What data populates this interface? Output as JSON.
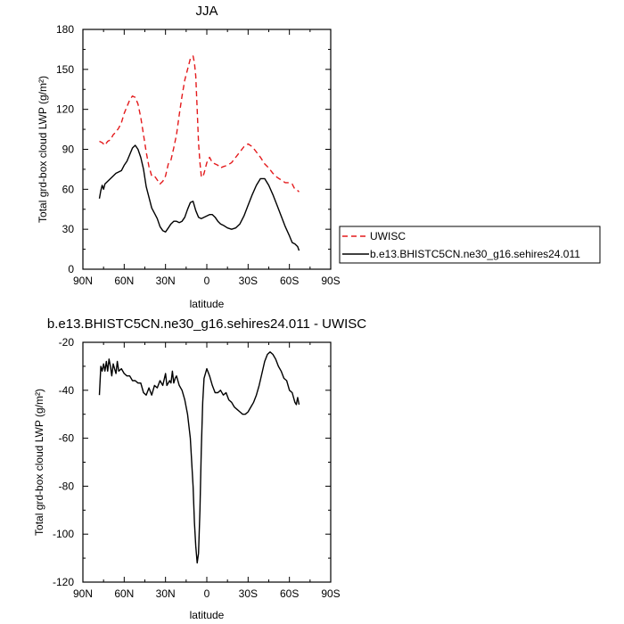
{
  "chart_data": [
    {
      "type": "line",
      "title": "JJA",
      "xlabel": "latitude",
      "ylabel": "Total grd-box cloud LWP (g/m²)",
      "xlim": [
        90,
        -90
      ],
      "ylim": [
        0,
        180
      ],
      "xticks": [
        {
          "value": 90,
          "label": "90N"
        },
        {
          "value": 60,
          "label": "60N"
        },
        {
          "value": 30,
          "label": "30N"
        },
        {
          "value": 0,
          "label": "0"
        },
        {
          "value": -30,
          "label": "30S"
        },
        {
          "value": -60,
          "label": "60S"
        },
        {
          "value": -90,
          "label": "90S"
        }
      ],
      "yticks": [
        0,
        30,
        60,
        90,
        120,
        150,
        180
      ],
      "legend_position": "right",
      "series": [
        {
          "name": "UWISC",
          "color": "#e41a1c",
          "dash": "dashed",
          "x": [
            78,
            76,
            74,
            72,
            70,
            68,
            66,
            64,
            62,
            60,
            58,
            56,
            54,
            52,
            50,
            48,
            46,
            44,
            42,
            40,
            38,
            36,
            34,
            32,
            30,
            28,
            26,
            24,
            22,
            20,
            18,
            16,
            14,
            12,
            10,
            9,
            8,
            7,
            6,
            5,
            4,
            3,
            2,
            0,
            -2,
            -4,
            -6,
            -8,
            -10,
            -12,
            -15,
            -18,
            -21,
            -24,
            -27,
            -30,
            -33,
            -36,
            -39,
            -42,
            -45,
            -48,
            -51,
            -54,
            -57,
            -60,
            -62,
            -64,
            -66,
            -67
          ],
          "y": [
            96,
            95,
            93,
            96,
            97,
            101,
            103,
            106,
            110,
            117,
            122,
            127,
            130,
            129,
            124,
            114,
            101,
            88,
            77,
            70,
            70,
            67,
            64,
            66,
            70,
            79,
            82,
            91,
            101,
            116,
            130,
            142,
            150,
            158,
            160,
            155,
            145,
            120,
            95,
            80,
            70,
            69,
            72,
            80,
            84,
            80,
            79,
            78,
            76,
            77,
            78,
            80,
            84,
            88,
            92,
            94,
            92,
            88,
            84,
            79,
            76,
            72,
            69,
            67,
            65,
            65,
            64,
            60,
            59,
            58
          ]
        },
        {
          "name": "b.e13.BHISTC5CN.ne30_g16.sehires24.011",
          "color": "#000000",
          "dash": "solid",
          "x": [
            78,
            77,
            76,
            75,
            74,
            72,
            70,
            68,
            66,
            64,
            62,
            60,
            58,
            56,
            54,
            52,
            50,
            48,
            46,
            44,
            42,
            40,
            38,
            36,
            34,
            32,
            30,
            28,
            26,
            24,
            22,
            20,
            18,
            16,
            14,
            12,
            10,
            8,
            6,
            4,
            2,
            0,
            -2,
            -4,
            -6,
            -8,
            -10,
            -12,
            -15,
            -18,
            -21,
            -24,
            -27,
            -30,
            -33,
            -36,
            -39,
            -42,
            -45,
            -48,
            -51,
            -54,
            -57,
            -60,
            -62,
            -64,
            -66,
            -67
          ],
          "y": [
            53,
            59,
            63,
            60,
            64,
            66,
            68,
            70,
            72,
            73,
            74,
            78,
            81,
            86,
            91,
            93,
            90,
            84,
            75,
            62,
            54,
            46,
            42,
            38,
            32,
            29,
            28,
            31,
            34,
            36,
            36,
            35,
            36,
            39,
            45,
            50,
            51,
            44,
            39,
            38,
            39,
            40,
            41,
            41,
            39,
            36,
            34,
            33,
            31,
            30,
            31,
            34,
            40,
            48,
            56,
            63,
            68,
            68,
            63,
            56,
            48,
            40,
            32,
            25,
            20,
            19,
            17,
            14
          ]
        }
      ]
    },
    {
      "type": "line",
      "title": "b.e13.BHISTC5CN.ne30_g16.sehires24.011 - UWISC",
      "xlabel": "latitude",
      "ylabel": "Total grd-box cloud LWP (g/m²)",
      "xlim": [
        90,
        -90
      ],
      "ylim": [
        -120,
        -20
      ],
      "xticks": [
        {
          "value": 90,
          "label": "90N"
        },
        {
          "value": 60,
          "label": "60N"
        },
        {
          "value": 30,
          "label": "30N"
        },
        {
          "value": 0,
          "label": "0"
        },
        {
          "value": -30,
          "label": "30S"
        },
        {
          "value": -60,
          "label": "60S"
        },
        {
          "value": -90,
          "label": "90S"
        }
      ],
      "yticks": [
        -120,
        -100,
        -80,
        -60,
        -40,
        -20
      ],
      "series": [
        {
          "color": "#000000",
          "dash": "solid",
          "x": [
            78,
            77,
            76,
            75,
            74,
            73,
            72,
            71,
            70,
            69,
            68,
            67,
            66,
            65,
            64,
            62,
            60,
            58,
            56,
            54,
            52,
            50,
            48,
            46,
            44,
            42,
            40,
            38,
            36,
            34,
            32,
            30,
            29,
            28,
            27,
            26,
            25,
            24,
            23,
            22,
            20,
            18,
            16,
            14,
            12,
            10,
            9,
            8,
            7,
            6,
            5,
            4,
            3,
            2,
            0,
            -2,
            -4,
            -6,
            -8,
            -10,
            -12,
            -14,
            -16,
            -18,
            -20,
            -22,
            -24,
            -26,
            -28,
            -30,
            -32,
            -34,
            -36,
            -38,
            -40,
            -42,
            -44,
            -46,
            -48,
            -50,
            -52,
            -54,
            -56,
            -58,
            -60,
            -62,
            -64,
            -65,
            -66,
            -67
          ],
          "y": [
            -42,
            -30,
            -32,
            -29,
            -32,
            -28,
            -32,
            -27,
            -30,
            -34,
            -29,
            -31,
            -33,
            -28,
            -32,
            -31,
            -33,
            -34,
            -34,
            -36,
            -36,
            -37,
            -37,
            -41,
            -42,
            -39,
            -42,
            -38,
            -39,
            -36,
            -38,
            -33,
            -38,
            -37,
            -36,
            -37,
            -32,
            -37,
            -35,
            -34,
            -38,
            -40,
            -44,
            -50,
            -60,
            -80,
            -95,
            -105,
            -112,
            -108,
            -90,
            -65,
            -45,
            -35,
            -31,
            -34,
            -38,
            -41,
            -41,
            -40,
            -42,
            -41,
            -44,
            -45,
            -47,
            -48,
            -49,
            -50,
            -50,
            -49,
            -47,
            -45,
            -42,
            -38,
            -33,
            -28,
            -25,
            -24,
            -25,
            -27,
            -30,
            -32,
            -35,
            -36,
            -40,
            -41,
            -45,
            -46,
            -43,
            -46
          ]
        }
      ]
    }
  ]
}
